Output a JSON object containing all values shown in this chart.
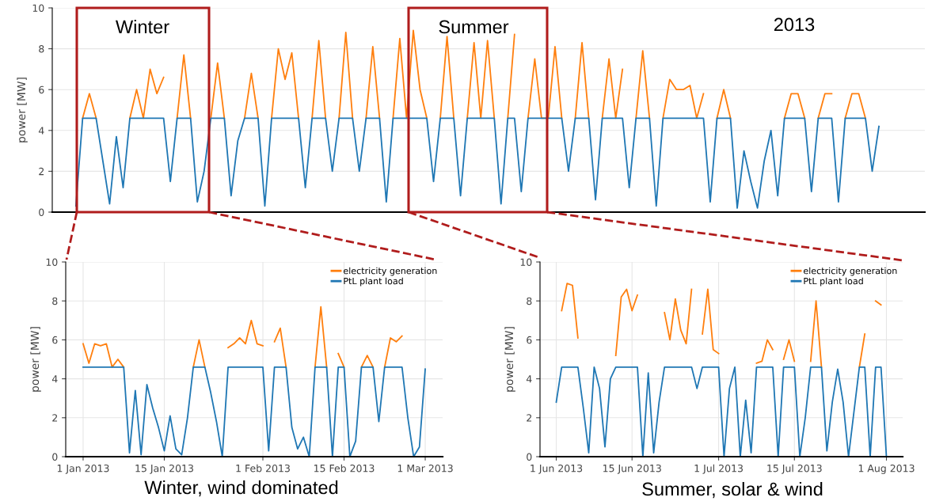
{
  "chart_data": [
    {
      "type": "line",
      "ylabel": "power [MW]",
      "ylim": [
        0,
        10
      ],
      "yticks": [
        0,
        2,
        4,
        6,
        8,
        10
      ],
      "grid": "y",
      "legend": false,
      "tick_labels": "y",
      "marker": "none",
      "line_style": "solid",
      "annotations": [
        "Winter",
        "Summer",
        "2013"
      ],
      "categories": [
        null,
        null,
        null,
        null,
        null,
        null,
        null,
        null,
        null,
        null,
        null,
        null,
        null,
        null,
        null,
        null,
        null,
        null,
        null,
        null,
        null,
        null,
        null,
        null,
        null,
        null,
        null,
        null,
        null,
        null,
        null,
        null,
        null,
        null,
        null,
        null,
        null,
        null,
        null,
        null,
        null,
        null,
        null,
        null,
        null,
        null,
        null,
        null,
        null,
        null,
        null,
        null,
        null,
        null,
        null,
        null,
        null,
        null,
        null,
        null,
        null,
        null,
        null,
        null,
        null,
        null,
        null,
        null,
        null,
        null,
        null,
        null,
        null,
        null,
        null,
        null,
        null,
        null,
        null,
        null,
        null,
        null,
        null,
        null,
        null,
        null,
        null,
        null,
        null,
        null,
        null,
        null,
        null,
        null,
        null,
        null,
        null,
        null,
        null,
        null,
        null,
        null,
        null,
        null,
        null,
        null,
        null,
        null,
        null,
        null,
        null,
        null,
        null,
        null,
        null,
        null,
        null,
        null,
        null,
        null
      ],
      "series": [
        {
          "color": "#ff7f0e",
          "values": [
            null,
            4.6,
            5.8,
            4.6,
            null,
            null,
            null,
            null,
            4.6,
            6.0,
            4.6,
            7.0,
            5.8,
            6.6,
            null,
            4.6,
            7.7,
            4.6,
            null,
            null,
            4.6,
            7.3,
            4.6,
            null,
            null,
            4.6,
            6.8,
            4.6,
            null,
            4.6,
            8.0,
            6.5,
            7.8,
            4.6,
            null,
            4.6,
            8.4,
            4.6,
            null,
            4.6,
            8.8,
            4.6,
            null,
            4.6,
            8.1,
            4.6,
            null,
            4.6,
            8.5,
            4.6,
            8.9,
            6.0,
            4.6,
            null,
            4.6,
            8.6,
            4.6,
            null,
            4.6,
            8.3,
            4.6,
            8.4,
            4.6,
            null,
            4.6,
            8.7,
            null,
            4.6,
            7.5,
            4.6,
            4.6,
            8.1,
            4.6,
            null,
            4.6,
            8.3,
            4.6,
            null,
            4.6,
            7.5,
            4.6,
            7.0,
            null,
            4.6,
            7.9,
            4.6,
            null,
            4.6,
            6.5,
            6.0,
            6.0,
            6.2,
            4.6,
            5.8,
            null,
            4.6,
            6.0,
            4.6,
            null,
            null,
            null,
            null,
            null,
            null,
            null,
            4.6,
            5.8,
            5.8,
            4.6,
            null,
            4.6,
            5.8,
            5.8,
            null,
            4.6,
            5.8,
            5.8,
            4.6,
            null,
            null
          ]
        },
        {
          "color": "#1f77b4",
          "values": [
            0.3,
            4.6,
            4.6,
            4.6,
            2.5,
            0.4,
            3.7,
            1.2,
            4.6,
            4.6,
            4.6,
            4.6,
            4.6,
            4.6,
            1.5,
            4.6,
            4.6,
            4.6,
            0.5,
            2.0,
            4.6,
            4.6,
            4.6,
            0.8,
            3.5,
            4.6,
            4.6,
            4.6,
            0.3,
            4.6,
            4.6,
            4.6,
            4.6,
            4.6,
            1.2,
            4.6,
            4.6,
            4.6,
            2.0,
            4.6,
            4.6,
            4.6,
            2.0,
            4.6,
            4.6,
            4.6,
            0.5,
            4.6,
            4.6,
            4.6,
            4.6,
            4.6,
            4.6,
            1.5,
            4.6,
            4.6,
            4.6,
            0.8,
            4.6,
            4.6,
            4.6,
            4.6,
            4.6,
            0.4,
            4.6,
            4.6,
            1.0,
            4.6,
            4.6,
            4.6,
            4.6,
            4.6,
            4.6,
            2.0,
            4.6,
            4.6,
            4.6,
            0.6,
            4.6,
            4.6,
            4.6,
            4.6,
            1.2,
            4.6,
            4.6,
            4.6,
            0.3,
            4.6,
            4.6,
            4.6,
            4.6,
            4.6,
            4.6,
            4.6,
            0.5,
            4.6,
            4.6,
            4.6,
            0.2,
            3.0,
            1.5,
            0.2,
            2.5,
            4.0,
            0.8,
            4.6,
            4.6,
            4.6,
            4.6,
            1.0,
            4.6,
            4.6,
            4.6,
            0.5,
            4.6,
            4.6,
            4.6,
            4.6,
            2.0,
            4.2
          ]
        }
      ]
    },
    {
      "type": "line",
      "ylabel": "power [MW]",
      "ylim": [
        0,
        10
      ],
      "yticks": [
        0,
        2,
        4,
        6,
        8,
        10
      ],
      "grid": true,
      "legend": "top right",
      "marker": "none",
      "line_style": "solid",
      "xlim": [
        "2012-12-29",
        "2013-03-04"
      ],
      "xticks": [
        {
          "value": "2013-01-01",
          "label": "1 Jan 2013"
        },
        {
          "value": "2013-01-15",
          "label": "15 Jan 2013"
        },
        {
          "value": "2013-02-01",
          "label": "1 Feb 2013"
        },
        {
          "value": "2013-02-15",
          "label": "15 Feb 2013"
        },
        {
          "value": "2013-03-01",
          "label": "1 Mar 2013"
        }
      ],
      "annotations": [
        "Winter, wind dominated"
      ],
      "x": [
        "2013-01-01",
        "2013-01-02",
        "2013-01-03",
        "2013-01-04",
        "2013-01-05",
        "2013-01-06",
        "2013-01-07",
        "2013-01-08",
        "2013-01-09",
        "2013-01-10",
        "2013-01-11",
        "2013-01-12",
        "2013-01-13",
        "2013-01-14",
        "2013-01-15",
        "2013-01-16",
        "2013-01-17",
        "2013-01-18",
        "2013-01-19",
        "2013-01-20",
        "2013-01-21",
        "2013-01-22",
        "2013-01-23",
        "2013-01-24",
        "2013-01-25",
        "2013-01-26",
        "2013-01-27",
        "2013-01-28",
        "2013-01-29",
        "2013-01-30",
        "2013-01-31",
        "2013-02-01",
        "2013-02-02",
        "2013-02-03",
        "2013-02-04",
        "2013-02-05",
        "2013-02-06",
        "2013-02-07",
        "2013-02-08",
        "2013-02-09",
        "2013-02-10",
        "2013-02-11",
        "2013-02-12",
        "2013-02-13",
        "2013-02-14",
        "2013-02-15",
        "2013-02-16",
        "2013-02-17",
        "2013-02-18",
        "2013-02-19",
        "2013-02-20",
        "2013-02-21",
        "2013-02-22",
        "2013-02-23",
        "2013-02-24",
        "2013-02-25",
        "2013-02-26",
        "2013-02-27",
        "2013-02-28",
        "2013-03-01"
      ],
      "series": [
        {
          "name": "electricity generation",
          "color": "#ff7f0e",
          "values": [
            5.8,
            4.8,
            5.8,
            5.7,
            5.8,
            4.6,
            5.0,
            4.6,
            null,
            null,
            null,
            null,
            null,
            null,
            null,
            null,
            null,
            null,
            null,
            4.6,
            6.0,
            4.6,
            null,
            null,
            null,
            5.6,
            5.8,
            6.1,
            5.8,
            7.0,
            5.8,
            5.7,
            null,
            5.9,
            6.6,
            4.6,
            null,
            null,
            null,
            null,
            4.6,
            7.7,
            4.6,
            null,
            5.3,
            4.6,
            null,
            null,
            4.6,
            5.2,
            4.6,
            null,
            4.6,
            6.1,
            5.9,
            6.2,
            null,
            null,
            null,
            null
          ]
        },
        {
          "name": "PtL plant load",
          "color": "#1f77b4",
          "values": [
            4.6,
            4.6,
            4.6,
            4.6,
            4.6,
            4.6,
            4.6,
            4.6,
            0.2,
            3.4,
            0.1,
            3.7,
            2.5,
            1.5,
            0.3,
            2.1,
            0.4,
            0.1,
            2.0,
            4.6,
            4.6,
            4.6,
            3.3,
            1.8,
            0.0,
            4.6,
            4.6,
            4.6,
            4.6,
            4.6,
            4.6,
            4.6,
            0.3,
            4.6,
            4.6,
            4.6,
            1.5,
            0.4,
            1.0,
            0.0,
            4.6,
            4.6,
            4.6,
            0.0,
            4.6,
            4.6,
            0.0,
            0.8,
            4.6,
            4.6,
            4.6,
            1.8,
            4.6,
            4.6,
            4.6,
            4.6,
            2.0,
            0.0,
            0.5,
            4.5
          ]
        }
      ]
    },
    {
      "type": "line",
      "ylabel": "power [MW]",
      "ylim": [
        0,
        10
      ],
      "yticks": [
        0,
        2,
        4,
        6,
        8,
        10
      ],
      "grid": true,
      "legend": "top right",
      "marker": "none",
      "line_style": "solid",
      "xlim": [
        "2013-05-29",
        "2013-08-04"
      ],
      "xticks": [
        {
          "value": "2013-06-01",
          "label": "1 Jun 2013"
        },
        {
          "value": "2013-06-15",
          "label": "15 Jun 2013"
        },
        {
          "value": "2013-07-01",
          "label": "1 Jul 2013"
        },
        {
          "value": "2013-07-15",
          "label": "15 Jul 2013"
        },
        {
          "value": "2013-08-01",
          "label": "1 Aug 2013"
        }
      ],
      "annotations": [
        "Summer, solar & wind"
      ],
      "x": [
        "2013-06-01",
        "2013-06-02",
        "2013-06-03",
        "2013-06-04",
        "2013-06-05",
        "2013-06-06",
        "2013-06-07",
        "2013-06-08",
        "2013-06-09",
        "2013-06-10",
        "2013-06-11",
        "2013-06-12",
        "2013-06-13",
        "2013-06-14",
        "2013-06-15",
        "2013-06-16",
        "2013-06-17",
        "2013-06-18",
        "2013-06-19",
        "2013-06-20",
        "2013-06-21",
        "2013-06-22",
        "2013-06-23",
        "2013-06-24",
        "2013-06-25",
        "2013-06-26",
        "2013-06-27",
        "2013-06-28",
        "2013-06-29",
        "2013-06-30",
        "2013-07-01",
        "2013-07-02",
        "2013-07-03",
        "2013-07-04",
        "2013-07-05",
        "2013-07-06",
        "2013-07-07",
        "2013-07-08",
        "2013-07-09",
        "2013-07-10",
        "2013-07-11",
        "2013-07-12",
        "2013-07-13",
        "2013-07-14",
        "2013-07-15",
        "2013-07-16",
        "2013-07-17",
        "2013-07-18",
        "2013-07-19",
        "2013-07-20",
        "2013-07-21",
        "2013-07-22",
        "2013-07-23",
        "2013-07-24",
        "2013-07-25",
        "2013-07-26",
        "2013-07-27",
        "2013-07-28",
        "2013-07-29",
        "2013-07-30",
        "2013-07-31",
        "2013-08-01"
      ],
      "series": [
        {
          "name": "electricity generation",
          "color": "#ff7f0e",
          "values": [
            null,
            7.5,
            8.9,
            8.8,
            6.1,
            null,
            null,
            null,
            null,
            null,
            null,
            5.2,
            8.2,
            8.6,
            7.5,
            8.3,
            null,
            null,
            null,
            null,
            7.4,
            6.0,
            8.1,
            6.5,
            5.8,
            8.6,
            null,
            6.3,
            8.6,
            5.5,
            5.3,
            null,
            null,
            null,
            null,
            null,
            null,
            4.8,
            4.9,
            6.0,
            5.5,
            null,
            5.0,
            6.0,
            4.9,
            null,
            null,
            4.9,
            8.0,
            4.6,
            null,
            null,
            null,
            null,
            null,
            null,
            4.6,
            6.3,
            null,
            8.0,
            7.8,
            null
          ]
        },
        {
          "name": "PtL plant load",
          "color": "#1f77b4",
          "values": [
            2.8,
            4.6,
            4.6,
            4.6,
            4.6,
            2.5,
            0.2,
            4.6,
            3.5,
            0.5,
            4.0,
            4.6,
            4.6,
            4.6,
            4.6,
            4.6,
            0.0,
            4.3,
            0.2,
            2.8,
            4.6,
            4.6,
            4.6,
            4.6,
            4.6,
            4.6,
            3.5,
            4.6,
            4.6,
            4.6,
            4.6,
            0.0,
            3.5,
            4.6,
            0.0,
            2.9,
            0.2,
            4.6,
            4.6,
            4.6,
            4.6,
            0.0,
            4.6,
            4.6,
            4.6,
            0.0,
            2.0,
            4.6,
            4.6,
            4.6,
            0.3,
            2.8,
            4.5,
            2.8,
            0.0,
            2.3,
            4.6,
            4.6,
            0.0,
            4.6,
            4.6,
            0.0
          ]
        }
      ]
    }
  ]
}
